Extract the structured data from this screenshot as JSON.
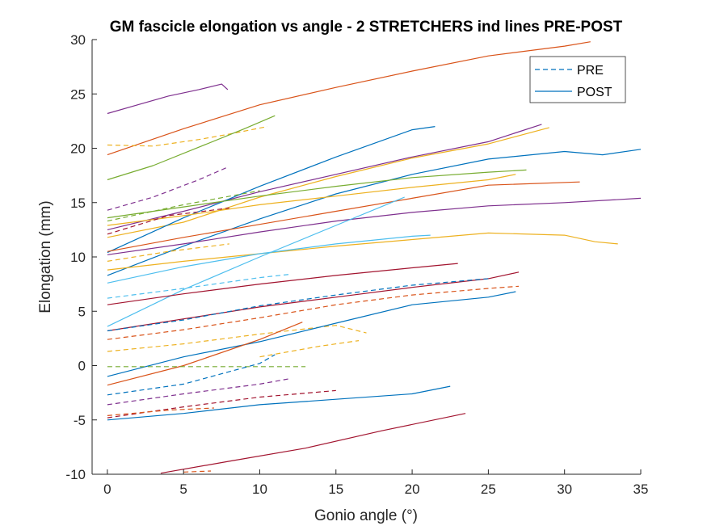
{
  "chart_data": {
    "type": "line",
    "title": "GM fascicle elongation vs angle - 2 STRETCHERS ind lines PRE-POST",
    "xlabel": "Gonio angle (°)",
    "ylabel": "Elongation (mm)",
    "xlim": [
      -1,
      35
    ],
    "ylim": [
      -10,
      30
    ],
    "xticks": [
      0,
      5,
      10,
      15,
      20,
      25,
      30,
      35
    ],
    "yticks": [
      -10,
      -5,
      0,
      5,
      10,
      15,
      20,
      25,
      30
    ],
    "grid": false,
    "legend": {
      "location": "top-right",
      "entries": [
        {
          "label": "PRE",
          "style": "dashed"
        },
        {
          "label": "POST",
          "style": "solid"
        }
      ]
    },
    "series": [
      {
        "style": "solid",
        "color": "#D95319",
        "points": [
          [
            0,
            19.4
          ],
          [
            5,
            21.8
          ],
          [
            10,
            24
          ],
          [
            15,
            25.6
          ],
          [
            20,
            27.1
          ],
          [
            25,
            28.5
          ],
          [
            30,
            29.4
          ],
          [
            31.7,
            29.8
          ]
        ]
      },
      {
        "style": "solid",
        "color": "#7E2F8E",
        "points": [
          [
            0,
            23.2
          ],
          [
            2,
            24
          ],
          [
            4,
            24.8
          ],
          [
            6,
            25.4
          ],
          [
            7.5,
            25.9
          ],
          [
            7.9,
            25.4
          ]
        ]
      },
      {
        "style": "dashed",
        "color": "#EDB120",
        "points": [
          [
            0,
            20.3
          ],
          [
            3,
            20.2
          ],
          [
            6,
            20.8
          ],
          [
            8,
            21.3
          ],
          [
            10.5,
            22
          ]
        ]
      },
      {
        "style": "solid",
        "color": "#77AC30",
        "points": [
          [
            0,
            17.1
          ],
          [
            3,
            18.4
          ],
          [
            6,
            20.1
          ],
          [
            9,
            21.8
          ],
          [
            11,
            23
          ]
        ]
      },
      {
        "style": "dashed",
        "color": "#7E2F8E",
        "points": [
          [
            0,
            14.3
          ],
          [
            3,
            15.5
          ],
          [
            6,
            17.1
          ],
          [
            7.8,
            18.2
          ]
        ]
      },
      {
        "style": "solid",
        "color": "#7E2F8E",
        "points": [
          [
            0,
            12.5
          ],
          [
            5,
            14.2
          ],
          [
            10,
            16
          ],
          [
            15,
            17.6
          ],
          [
            20,
            19.2
          ],
          [
            25,
            20.6
          ],
          [
            28.5,
            22.2
          ]
        ]
      },
      {
        "style": "solid",
        "color": "#EDB120",
        "points": [
          [
            0,
            11.8
          ],
          [
            5,
            13.2
          ],
          [
            10,
            15.5
          ],
          [
            15,
            17.4
          ],
          [
            20,
            19.1
          ],
          [
            25,
            20.4
          ],
          [
            29,
            21.9
          ]
        ]
      },
      {
        "style": "solid",
        "color": "#0072BD",
        "points": [
          [
            0,
            10.4
          ],
          [
            5,
            13.6
          ],
          [
            10,
            16.5
          ],
          [
            15,
            19.2
          ],
          [
            20,
            21.7
          ],
          [
            21.5,
            22
          ]
        ]
      },
      {
        "style": "solid",
        "color": "#0072BD",
        "points": [
          [
            0,
            8.3
          ],
          [
            5,
            11
          ],
          [
            10,
            13.5
          ],
          [
            15,
            15.8
          ],
          [
            20,
            17.6
          ],
          [
            25,
            19
          ],
          [
            30,
            19.7
          ],
          [
            32.5,
            19.4
          ],
          [
            35,
            19.9
          ]
        ]
      },
      {
        "style": "solid",
        "color": "#77AC30",
        "points": [
          [
            0,
            13.6
          ],
          [
            5,
            14.6
          ],
          [
            10,
            15.6
          ],
          [
            15,
            16.5
          ],
          [
            20,
            17.3
          ],
          [
            25,
            17.8
          ],
          [
            27.5,
            18
          ]
        ]
      },
      {
        "style": "solid",
        "color": "#EDB120",
        "points": [
          [
            0,
            12.9
          ],
          [
            5,
            13.8
          ],
          [
            10,
            14.8
          ],
          [
            15,
            15.6
          ],
          [
            20,
            16.4
          ],
          [
            25,
            17.1
          ],
          [
            26.8,
            17.6
          ]
        ]
      },
      {
        "style": "solid",
        "color": "#D95319",
        "points": [
          [
            0,
            10.5
          ],
          [
            5,
            11.8
          ],
          [
            10,
            13
          ],
          [
            15,
            14.2
          ],
          [
            20,
            15.4
          ],
          [
            25,
            16.6
          ],
          [
            31,
            16.9
          ]
        ]
      },
      {
        "style": "solid",
        "color": "#7E2F8E",
        "points": [
          [
            0,
            10.2
          ],
          [
            5,
            11.2
          ],
          [
            10,
            12.3
          ],
          [
            15,
            13.3
          ],
          [
            20,
            14.1
          ],
          [
            25,
            14.7
          ],
          [
            30,
            15
          ],
          [
            35,
            15.4
          ]
        ]
      },
      {
        "style": "solid",
        "color": "#EDB120",
        "points": [
          [
            0,
            8.8
          ],
          [
            5,
            9.6
          ],
          [
            10,
            10.3
          ],
          [
            15,
            11
          ],
          [
            20,
            11.6
          ],
          [
            25,
            12.2
          ],
          [
            30,
            12
          ],
          [
            32,
            11.4
          ],
          [
            33.5,
            11.2
          ]
        ]
      },
      {
        "style": "solid",
        "color": "#4DBEEE",
        "points": [
          [
            0,
            7.6
          ],
          [
            5,
            9.1
          ],
          [
            10,
            10.3
          ],
          [
            15,
            11.2
          ],
          [
            20,
            11.9
          ],
          [
            21.2,
            12
          ]
        ]
      },
      {
        "style": "solid",
        "color": "#4DBEEE",
        "points": [
          [
            0,
            3.6
          ],
          [
            5,
            7
          ],
          [
            10,
            10
          ],
          [
            15,
            12.9
          ],
          [
            19.5,
            15.5
          ]
        ]
      },
      {
        "style": "dashed",
        "color": "#77AC30",
        "points": [
          [
            0,
            13.3
          ],
          [
            5,
            14.8
          ],
          [
            10,
            16.1
          ]
        ]
      },
      {
        "style": "dashed",
        "color": "#A2142F",
        "points": [
          [
            0,
            12.1
          ],
          [
            4,
            13.8
          ],
          [
            8,
            14.5
          ]
        ]
      },
      {
        "style": "dashed",
        "color": "#EDB120",
        "points": [
          [
            0,
            9.6
          ],
          [
            4,
            10.5
          ],
          [
            8,
            11.2
          ]
        ]
      },
      {
        "style": "dashed",
        "color": "#4DBEEE",
        "points": [
          [
            0,
            6.2
          ],
          [
            5,
            7.1
          ],
          [
            10,
            8.1
          ],
          [
            12,
            8.4
          ]
        ]
      },
      {
        "style": "solid",
        "color": "#A2142F",
        "points": [
          [
            0,
            5.6
          ],
          [
            5,
            6.6
          ],
          [
            10,
            7.5
          ],
          [
            15,
            8.3
          ],
          [
            20,
            9
          ],
          [
            23,
            9.4
          ]
        ]
      },
      {
        "style": "solid",
        "color": "#A2142F",
        "points": [
          [
            0,
            3.2
          ],
          [
            5,
            4.3
          ],
          [
            10,
            5.4
          ],
          [
            15,
            6.3
          ],
          [
            20,
            7.2
          ],
          [
            25,
            8
          ],
          [
            27,
            8.6
          ]
        ]
      },
      {
        "style": "dashed",
        "color": "#0072BD",
        "points": [
          [
            0,
            3.2
          ],
          [
            5,
            4.2
          ],
          [
            10,
            5.5
          ],
          [
            15,
            6.5
          ],
          [
            20,
            7.4
          ],
          [
            25,
            8
          ]
        ]
      },
      {
        "style": "dashed",
        "color": "#D95319",
        "points": [
          [
            0,
            2.4
          ],
          [
            5,
            3.3
          ],
          [
            10,
            4.4
          ],
          [
            15,
            5.6
          ],
          [
            20,
            6.5
          ],
          [
            25,
            7.1
          ],
          [
            27,
            7.3
          ]
        ]
      },
      {
        "style": "dashed",
        "color": "#EDB120",
        "points": [
          [
            0,
            1.3
          ],
          [
            5,
            2
          ],
          [
            10,
            2.9
          ],
          [
            15,
            3.7
          ],
          [
            17,
            3
          ]
        ]
      },
      {
        "style": "solid",
        "color": "#0072BD",
        "points": [
          [
            0,
            -1
          ],
          [
            5,
            0.8
          ],
          [
            10,
            2.2
          ],
          [
            15,
            3.9
          ],
          [
            20,
            5.6
          ],
          [
            25,
            6.3
          ],
          [
            26.8,
            6.8
          ]
        ]
      },
      {
        "style": "solid",
        "color": "#D95319",
        "points": [
          [
            0,
            -1.8
          ],
          [
            5,
            0
          ],
          [
            10,
            2.4
          ],
          [
            12.8,
            4
          ]
        ]
      },
      {
        "style": "dashed",
        "color": "#77AC30",
        "points": [
          [
            0,
            -0.1
          ],
          [
            5,
            -0.1
          ],
          [
            10,
            -0.1
          ],
          [
            13,
            -0.1
          ]
        ]
      },
      {
        "style": "dashed",
        "color": "#0072BD",
        "points": [
          [
            0,
            -2.7
          ],
          [
            5,
            -1.7
          ],
          [
            10,
            0.2
          ],
          [
            11,
            1
          ]
        ]
      },
      {
        "style": "dashed",
        "color": "#EDB120",
        "points": [
          [
            10,
            0.8
          ],
          [
            14,
            1.8
          ],
          [
            16.5,
            2.3
          ]
        ]
      },
      {
        "style": "dashed",
        "color": "#7E2F8E",
        "points": [
          [
            0,
            -3.6
          ],
          [
            5,
            -2.6
          ],
          [
            10,
            -1.7
          ],
          [
            12,
            -1.2
          ]
        ]
      },
      {
        "style": "dashed",
        "color": "#A2142F",
        "points": [
          [
            0,
            -4.8
          ],
          [
            5,
            -3.8
          ],
          [
            10,
            -2.9
          ],
          [
            15,
            -2.3
          ]
        ]
      },
      {
        "style": "dashed",
        "color": "#D95319",
        "points": [
          [
            0,
            -4.6
          ],
          [
            4,
            -4.1
          ],
          [
            7,
            -3.9
          ]
        ]
      },
      {
        "style": "solid",
        "color": "#0072BD",
        "points": [
          [
            0,
            -5
          ],
          [
            5,
            -4.4
          ],
          [
            10,
            -3.6
          ],
          [
            15,
            -3.1
          ],
          [
            20,
            -2.6
          ],
          [
            22.5,
            -1.9
          ]
        ]
      },
      {
        "style": "solid",
        "color": "#A2142F",
        "points": [
          [
            3.5,
            -9.9
          ],
          [
            8,
            -8.8
          ],
          [
            13,
            -7.6
          ],
          [
            18,
            -6
          ],
          [
            23.5,
            -4.4
          ]
        ]
      },
      {
        "style": "dashed",
        "color": "#D95319",
        "points": [
          [
            5,
            -9.8
          ],
          [
            6.8,
            -9.7
          ]
        ]
      }
    ]
  }
}
